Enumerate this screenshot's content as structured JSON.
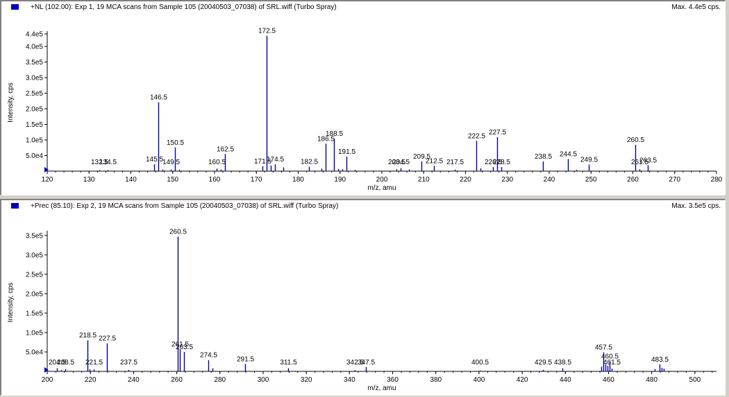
{
  "panels": [
    {
      "title": "+NL (102.00): Exp 1, 19 MCA scans from Sample 105 (20040503_07038) of SRL.wiff (Turbo Spray)",
      "max_label": "Max. 4.4e5 cps."
    },
    {
      "title": "+Prec (85.10): Exp 2, 19 MCA scans from Sample 105 (20040503_07038) of SRL.wiff (Turbo Spray)",
      "max_label": "Max. 3.5e5 cps."
    }
  ],
  "colors": {
    "series": "#0000a0",
    "marker": "#0000c0"
  },
  "chart_data": [
    {
      "type": "bar",
      "xlabel": "m/z, amu",
      "ylabel": "Intensity, cps",
      "xlim": [
        120,
        280
      ],
      "ylim": [
        0,
        440000
      ],
      "x_ticks": [
        120,
        130,
        140,
        150,
        160,
        170,
        180,
        190,
        200,
        210,
        220,
        230,
        240,
        250,
        260,
        270,
        280
      ],
      "y_ticks": [
        {
          "value": 50000,
          "label": "5.0e4"
        },
        {
          "value": 100000,
          "label": "1.0e5"
        },
        {
          "value": 150000,
          "label": "1.5e5"
        },
        {
          "value": 200000,
          "label": "2.0e5"
        },
        {
          "value": 250000,
          "label": "2.5e5"
        },
        {
          "value": 300000,
          "label": "3.0e5"
        },
        {
          "value": 350000,
          "label": "3.5e5"
        },
        {
          "value": 400000,
          "label": "4.0e5"
        },
        {
          "value": 440000,
          "label": "4.4e5"
        }
      ],
      "peaks": [
        {
          "x": 132.5,
          "y": 3000,
          "label": "132.5"
        },
        {
          "x": 134.5,
          "y": 3000,
          "label": "134.5"
        },
        {
          "x": 145.5,
          "y": 22000,
          "label": "145.5"
        },
        {
          "x": 146.5,
          "y": 221000,
          "label": "146.5"
        },
        {
          "x": 147.5,
          "y": 5000,
          "label": ""
        },
        {
          "x": 149.5,
          "y": 5000,
          "label": "149.5"
        },
        {
          "x": 150.5,
          "y": 76000,
          "label": "150.5"
        },
        {
          "x": 151.5,
          "y": 4000,
          "label": ""
        },
        {
          "x": 160.5,
          "y": 8000,
          "label": "160.5"
        },
        {
          "x": 161.5,
          "y": 5000,
          "label": ""
        },
        {
          "x": 162.5,
          "y": 55000,
          "label": "162.5"
        },
        {
          "x": 171.5,
          "y": 16000,
          "label": "171.5"
        },
        {
          "x": 172.5,
          "y": 434000,
          "label": "172.5"
        },
        {
          "x": 173.5,
          "y": 18000,
          "label": ""
        },
        {
          "x": 174.5,
          "y": 22000,
          "label": "174.5"
        },
        {
          "x": 176.5,
          "y": 12000,
          "label": ""
        },
        {
          "x": 182.5,
          "y": 14000,
          "label": "182.5"
        },
        {
          "x": 185.5,
          "y": 8000,
          "label": ""
        },
        {
          "x": 186.5,
          "y": 88000,
          "label": "186.5"
        },
        {
          "x": 188.5,
          "y": 104000,
          "label": "188.5"
        },
        {
          "x": 189.5,
          "y": 7000,
          "label": ""
        },
        {
          "x": 190.5,
          "y": 6000,
          "label": ""
        },
        {
          "x": 191.5,
          "y": 47000,
          "label": "191.5"
        },
        {
          "x": 193.5,
          "y": 4000,
          "label": ""
        },
        {
          "x": 203.5,
          "y": 6000,
          "label": "203.5"
        },
        {
          "x": 204.5,
          "y": 9000,
          "label": "204.5"
        },
        {
          "x": 206.5,
          "y": 5000,
          "label": ""
        },
        {
          "x": 209.5,
          "y": 31000,
          "label": "209.5"
        },
        {
          "x": 212.5,
          "y": 17000,
          "label": "212.5"
        },
        {
          "x": 217.5,
          "y": 5000,
          "label": "217.5"
        },
        {
          "x": 222.5,
          "y": 97000,
          "label": "222.5"
        },
        {
          "x": 223.5,
          "y": 9000,
          "label": ""
        },
        {
          "x": 226.5,
          "y": 13000,
          "label": "226.5"
        },
        {
          "x": 227.5,
          "y": 109000,
          "label": "227.5"
        },
        {
          "x": 228.5,
          "y": 13000,
          "label": "228.5"
        },
        {
          "x": 238.5,
          "y": 31000,
          "label": "238.5"
        },
        {
          "x": 244.5,
          "y": 39000,
          "label": "244.5"
        },
        {
          "x": 246.5,
          "y": 4000,
          "label": ""
        },
        {
          "x": 249.5,
          "y": 21000,
          "label": "249.5"
        },
        {
          "x": 260.5,
          "y": 84000,
          "label": "260.5"
        },
        {
          "x": 261.5,
          "y": 6000,
          "label": "261.5"
        },
        {
          "x": 263.5,
          "y": 19000,
          "label": "263.5"
        }
      ]
    },
    {
      "type": "bar",
      "xlabel": "m/z, amu",
      "ylabel": "Intensity, cps",
      "xlim": [
        200,
        510
      ],
      "ylim": [
        0,
        355000
      ],
      "x_ticks": [
        200,
        220,
        240,
        260,
        280,
        300,
        320,
        340,
        360,
        380,
        400,
        420,
        440,
        460,
        480,
        500
      ],
      "y_ticks": [
        {
          "value": 50000,
          "label": "5.0e4"
        },
        {
          "value": 100000,
          "label": "1.0e5"
        },
        {
          "value": 150000,
          "label": "1.5e5"
        },
        {
          "value": 200000,
          "label": "2.0e5"
        },
        {
          "value": 250000,
          "label": "2.5e5"
        },
        {
          "value": 300000,
          "label": "3.0e5"
        },
        {
          "value": 350000,
          "label": "3.5e5"
        }
      ],
      "peaks": [
        {
          "x": 204.5,
          "y": 8000,
          "label": "204.5"
        },
        {
          "x": 206.5,
          "y": 3000,
          "label": ""
        },
        {
          "x": 208.5,
          "y": 6000,
          "label": "208.5"
        },
        {
          "x": 218.5,
          "y": 80000,
          "label": "218.5"
        },
        {
          "x": 219.5,
          "y": 5000,
          "label": ""
        },
        {
          "x": 221.5,
          "y": 5000,
          "label": "221.5"
        },
        {
          "x": 227.5,
          "y": 72000,
          "label": "227.5"
        },
        {
          "x": 237.5,
          "y": 4000,
          "label": "237.5"
        },
        {
          "x": 260.5,
          "y": 347000,
          "label": "260.5"
        },
        {
          "x": 261.5,
          "y": 57000,
          "label": "261.5"
        },
        {
          "x": 263.5,
          "y": 50000,
          "label": "263.5"
        },
        {
          "x": 274.5,
          "y": 29000,
          "label": "274.5"
        },
        {
          "x": 276.5,
          "y": 8000,
          "label": ""
        },
        {
          "x": 291.5,
          "y": 19000,
          "label": "291.5"
        },
        {
          "x": 311.5,
          "y": 8000,
          "label": "311.5"
        },
        {
          "x": 342.5,
          "y": 3000,
          "label": "342.5"
        },
        {
          "x": 347.5,
          "y": 11000,
          "label": "347.5"
        },
        {
          "x": 400.5,
          "y": 2000,
          "label": "400.5"
        },
        {
          "x": 429.5,
          "y": 4000,
          "label": "429.5"
        },
        {
          "x": 438.5,
          "y": 8000,
          "label": "438.5"
        },
        {
          "x": 456.5,
          "y": 12000,
          "label": ""
        },
        {
          "x": 457.5,
          "y": 49000,
          "label": "457.5"
        },
        {
          "x": 458.5,
          "y": 18000,
          "label": ""
        },
        {
          "x": 459.5,
          "y": 14000,
          "label": ""
        },
        {
          "x": 460.5,
          "y": 26000,
          "label": "460.5"
        },
        {
          "x": 461.5,
          "y": 7000,
          "label": "461.5"
        },
        {
          "x": 481.5,
          "y": 6000,
          "label": ""
        },
        {
          "x": 483.5,
          "y": 18000,
          "label": "483.5"
        },
        {
          "x": 484.5,
          "y": 9000,
          "label": ""
        },
        {
          "x": 485.5,
          "y": 7000,
          "label": ""
        }
      ]
    }
  ]
}
